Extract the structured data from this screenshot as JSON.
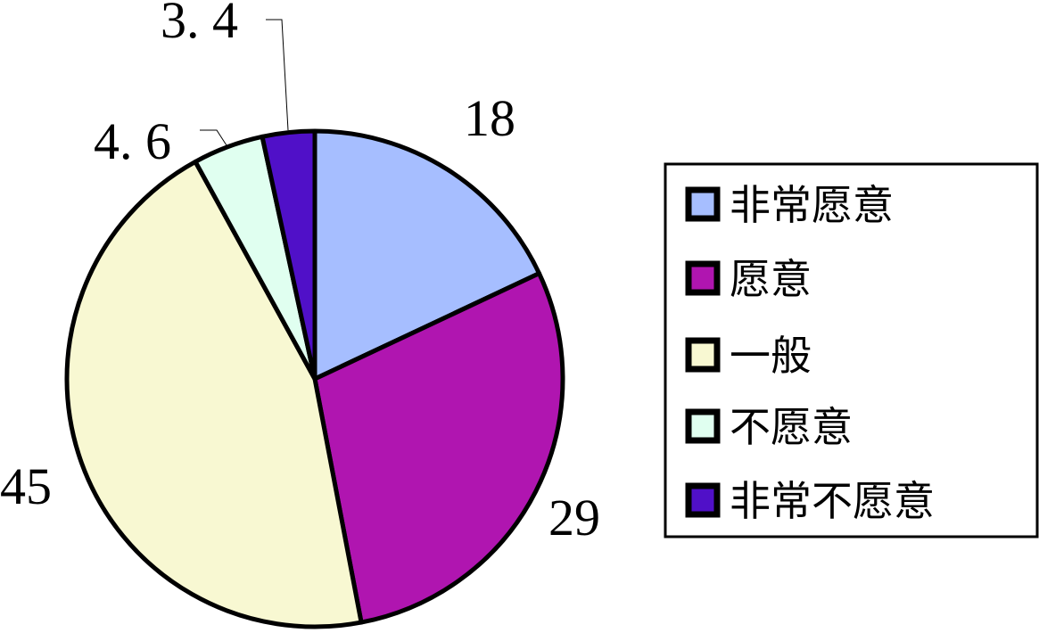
{
  "chart_data": {
    "type": "pie",
    "title": "",
    "start_angle": "top",
    "direction": "clockwise",
    "legend_placement": "right",
    "slices": [
      {
        "label": "非常愿意",
        "value": 18,
        "data_label": "18",
        "color": "#A6BEFF"
      },
      {
        "label": "愿意",
        "value": 29,
        "data_label": "29",
        "color": "#B015B0"
      },
      {
        "label": "一般",
        "value": 45,
        "data_label": "45",
        "color": "#F8F8D2"
      },
      {
        "label": "不愿意",
        "value": 4.6,
        "data_label": "4. 6",
        "color": "#E0FFF0"
      },
      {
        "label": "非常不愿意",
        "value": 3.4,
        "data_label": "3. 4",
        "color": "#5010C8"
      }
    ]
  }
}
